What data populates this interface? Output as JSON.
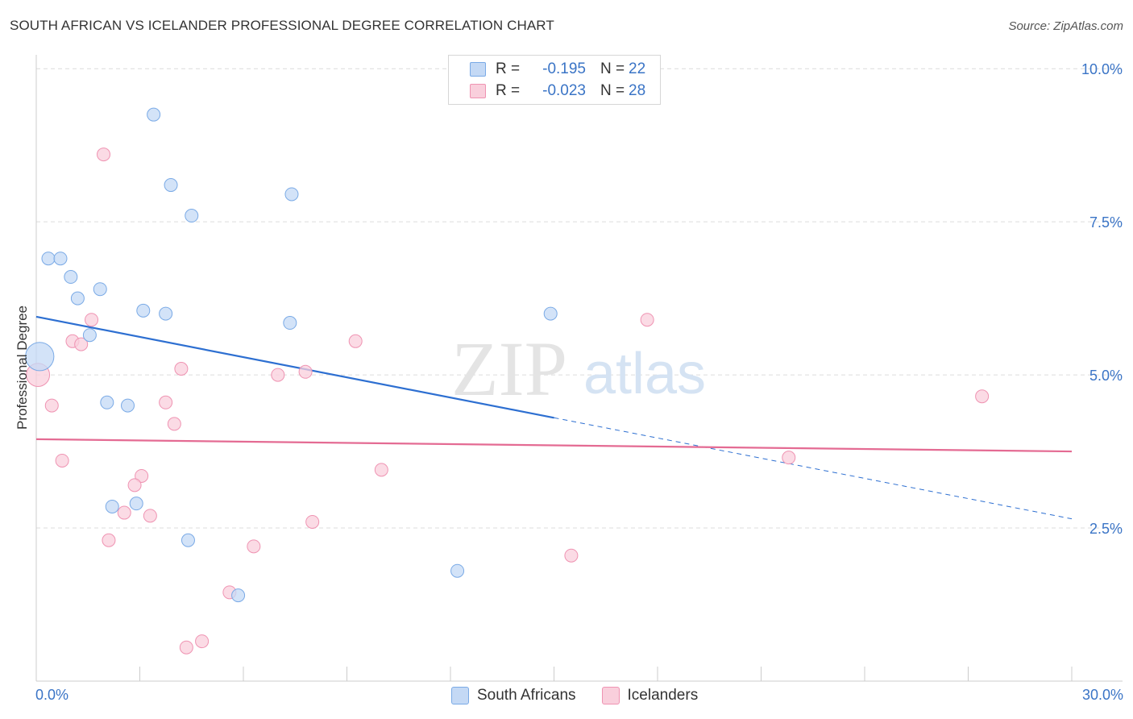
{
  "title": "SOUTH AFRICAN VS ICELANDER PROFESSIONAL DEGREE CORRELATION CHART",
  "source": "Source: ZipAtlas.com",
  "watermark": {
    "zip": "ZIP",
    "atlas": "atlas"
  },
  "colors": {
    "blue_fill": "#c4d9f5",
    "blue_stroke": "#7aaae6",
    "blue_line": "#2d6fd1",
    "pink_fill": "#f9cfdc",
    "pink_stroke": "#ef93b2",
    "pink_line": "#e46b93",
    "tick_text": "#3a74c6",
    "grid": "#dcdcdc"
  },
  "legend_top": [
    {
      "r_label": "R =",
      "r_value": "-0.195",
      "n_label": "N =",
      "n_value": "22"
    },
    {
      "r_label": "R =",
      "r_value": "-0.023",
      "n_label": "N =",
      "n_value": "28"
    }
  ],
  "legend_bottom": [
    "South Africans",
    "Icelanders"
  ],
  "chart_data": {
    "type": "scatter",
    "title": "SOUTH AFRICAN VS ICELANDER PROFESSIONAL DEGREE CORRELATION CHART",
    "xlabel": "",
    "ylabel": "Professional Degree",
    "xlim": [
      0,
      30
    ],
    "ylim": [
      0,
      10.2
    ],
    "x_tick_labels": [
      "0.0%",
      "30.0%"
    ],
    "y_ticks": [
      2.5,
      5.0,
      7.5,
      10.0
    ],
    "y_tick_labels": [
      "2.5%",
      "5.0%",
      "7.5%",
      "10.0%"
    ],
    "series": [
      {
        "name": "South Africans",
        "r": -0.195,
        "n": 22,
        "points": [
          {
            "x": 0.1,
            "y": 5.3,
            "s": 2.2
          },
          {
            "x": 0.35,
            "y": 6.9
          },
          {
            "x": 0.7,
            "y": 6.9
          },
          {
            "x": 1.0,
            "y": 6.6
          },
          {
            "x": 1.2,
            "y": 6.25
          },
          {
            "x": 1.85,
            "y": 6.4
          },
          {
            "x": 1.55,
            "y": 5.65
          },
          {
            "x": 3.4,
            "y": 9.25
          },
          {
            "x": 3.9,
            "y": 8.1
          },
          {
            "x": 4.5,
            "y": 7.6
          },
          {
            "x": 3.1,
            "y": 6.05
          },
          {
            "x": 3.75,
            "y": 6.0
          },
          {
            "x": 7.4,
            "y": 7.95
          },
          {
            "x": 7.35,
            "y": 5.85
          },
          {
            "x": 2.05,
            "y": 4.55
          },
          {
            "x": 2.65,
            "y": 4.5
          },
          {
            "x": 2.2,
            "y": 2.85
          },
          {
            "x": 2.9,
            "y": 2.9
          },
          {
            "x": 4.4,
            "y": 2.3
          },
          {
            "x": 5.85,
            "y": 1.4
          },
          {
            "x": 12.2,
            "y": 1.8
          },
          {
            "x": 14.9,
            "y": 6.0
          }
        ],
        "trend": {
          "x0": 0,
          "y0": 5.95,
          "x1": 15.0,
          "y1": 4.3,
          "dash_to_x": 30,
          "dash_to_y": 2.65
        }
      },
      {
        "name": "Icelanders",
        "r": -0.023,
        "n": 28,
        "points": [
          {
            "x": 0.05,
            "y": 5.0,
            "s": 1.8
          },
          {
            "x": 0.45,
            "y": 4.5
          },
          {
            "x": 0.75,
            "y": 3.6
          },
          {
            "x": 1.95,
            "y": 8.6
          },
          {
            "x": 1.6,
            "y": 5.9
          },
          {
            "x": 1.05,
            "y": 5.55
          },
          {
            "x": 1.3,
            "y": 5.5
          },
          {
            "x": 4.2,
            "y": 5.1
          },
          {
            "x": 3.75,
            "y": 4.55
          },
          {
            "x": 4.0,
            "y": 4.2
          },
          {
            "x": 3.05,
            "y": 3.35
          },
          {
            "x": 2.85,
            "y": 3.2
          },
          {
            "x": 2.55,
            "y": 2.75
          },
          {
            "x": 3.3,
            "y": 2.7
          },
          {
            "x": 2.1,
            "y": 2.3
          },
          {
            "x": 4.35,
            "y": 0.55
          },
          {
            "x": 4.8,
            "y": 0.65
          },
          {
            "x": 5.6,
            "y": 1.45
          },
          {
            "x": 6.3,
            "y": 2.2
          },
          {
            "x": 7.0,
            "y": 5.0
          },
          {
            "x": 7.8,
            "y": 5.05
          },
          {
            "x": 8.0,
            "y": 2.6
          },
          {
            "x": 9.25,
            "y": 5.55
          },
          {
            "x": 10.0,
            "y": 3.45
          },
          {
            "x": 15.5,
            "y": 2.05
          },
          {
            "x": 17.7,
            "y": 5.9
          },
          {
            "x": 21.8,
            "y": 3.65
          },
          {
            "x": 27.4,
            "y": 4.65
          }
        ],
        "trend": {
          "x0": 0,
          "y0": 3.95,
          "x1": 30,
          "y1": 3.75
        }
      }
    ]
  }
}
